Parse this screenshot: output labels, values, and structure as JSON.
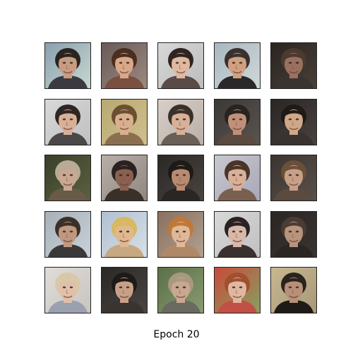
{
  "caption": "Epoch 20",
  "grid": {
    "rows": 5,
    "cols": 5,
    "tiles": [
      {
        "bg": "#8aa0b0",
        "bg2": "#c8d8d0",
        "skin": "#c89c80",
        "hair": "#2a2420",
        "shirt": "#3a3a40"
      },
      {
        "bg": "#6a5a58",
        "bg2": "#9c8a80",
        "skin": "#d8a888",
        "hair": "#4a2e20",
        "shirt": "#7a5040"
      },
      {
        "bg": "#d8d8d8",
        "bg2": "#bcbcbc",
        "skin": "#e0b8a0",
        "hair": "#2e2420",
        "shirt": "#5a4a48"
      },
      {
        "bg": "#a8b8c0",
        "bg2": "#d0d8d8",
        "skin": "#d0a080",
        "hair": "#3a3030",
        "shirt": "#2a2828"
      },
      {
        "bg": "#2a2420",
        "bg2": "#484038",
        "skin": "#9a7060",
        "hair": "#4a3a30",
        "shirt": "#3a3430"
      },
      {
        "bg": "#d8d8d8",
        "bg2": "#c0c0c0",
        "skin": "#d8b098",
        "hair": "#2e2622",
        "shirt": "#4a4848"
      },
      {
        "bg": "#b8a870",
        "bg2": "#d0c090",
        "skin": "#d8b090",
        "hair": "#6a5030",
        "shirt": "#8a7050"
      },
      {
        "bg": "#d8d0c8",
        "bg2": "#b8b0a8",
        "skin": "#d8b098",
        "hair": "#3a302a",
        "shirt": "#6a6058"
      },
      {
        "bg": "#3a3836",
        "bg2": "#5a5450",
        "skin": "#c09078",
        "hair": "#2a2220",
        "shirt": "#5a4a40"
      },
      {
        "bg": "#2a2624",
        "bg2": "#484240",
        "skin": "#d0a888",
        "hair": "#1e1a18",
        "shirt": "#3a3230"
      },
      {
        "bg": "#3a4028",
        "bg2": "#5a6040",
        "skin": "#c8a890",
        "hair": "#b8aa98",
        "shirt": "#6a5a48"
      },
      {
        "bg": "#b8b0a8",
        "bg2": "#908880",
        "skin": "#8a6050",
        "hair": "#2a2220",
        "shirt": "#3a3028"
      },
      {
        "bg": "#2a2826",
        "bg2": "#4a4440",
        "skin": "#b88a70",
        "hair": "#1e1a18",
        "shirt": "#2a2624"
      },
      {
        "bg": "#c8c8d0",
        "bg2": "#a8a8b8",
        "skin": "#d8b098",
        "hair": "#4a3428",
        "shirt": "#7a6050"
      },
      {
        "bg": "#3a3430",
        "bg2": "#5a504a",
        "skin": "#c8a088",
        "hair": "#6a5038",
        "shirt": "#5a4a40"
      },
      {
        "bg": "#a8b0b8",
        "bg2": "#c8d0d8",
        "skin": "#c09880",
        "hair": "#3a302a",
        "shirt": "#3a3838"
      },
      {
        "bg": "#b0c0d0",
        "bg2": "#d8e0e8",
        "skin": "#e0b890",
        "hair": "#d8b860",
        "shirt": "#c8a880"
      },
      {
        "bg": "#8a7060",
        "bg2": "#b0a090",
        "skin": "#e0b898",
        "hair": "#c07838",
        "shirt": "#b08868"
      },
      {
        "bg": "#d8d8d8",
        "bg2": "#c0c0c0",
        "skin": "#d8b8a8",
        "hair": "#2a2222",
        "shirt": "#3a3030"
      },
      {
        "bg": "#2a2624",
        "bg2": "#3a3430",
        "skin": "#b8947c",
        "hair": "#4a3c34",
        "shirt": "#2a2624"
      },
      {
        "bg": "#e0dcd8",
        "bg2": "#c8c4c0",
        "skin": "#e0c0a8",
        "hair": "#d8c8a8",
        "shirt": "#9aa0b0"
      },
      {
        "bg": "#2a2826",
        "bg2": "#4a4642",
        "skin": "#c8a088",
        "hair": "#1e1a18",
        "shirt": "#3a3430"
      },
      {
        "bg": "#5a7048",
        "bg2": "#8a9a70",
        "skin": "#c8a890",
        "hair": "#a89880",
        "shirt": "#6a6a60"
      },
      {
        "bg": "#c84a3a",
        "bg2": "#88a060",
        "skin": "#e0b8a0",
        "hair": "#a05030",
        "shirt": "#c05048"
      },
      {
        "bg": "#c8b890",
        "bg2": "#a89878",
        "skin": "#b89078",
        "hair": "#2a2420",
        "shirt": "#1e1a18"
      }
    ]
  }
}
